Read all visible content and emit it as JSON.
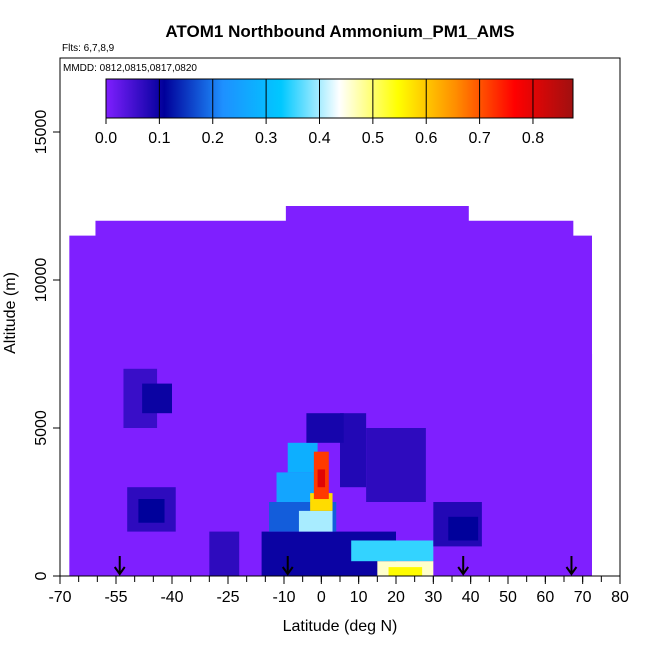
{
  "chart_data": {
    "type": "heatmap",
    "title": "ATOM1 Northbound Ammonium_PM1_AMS",
    "annotations": {
      "flights": "Flts: 6,7,8,9",
      "dates": "MMDD: 0812,0815,0817,0820"
    },
    "xlabel": "Latitude (deg N)",
    "ylabel": "Altitude (m)",
    "xlim": [
      -70,
      80
    ],
    "ylim": [
      0,
      17500
    ],
    "x_ticks": [
      -70,
      -55,
      -40,
      -25,
      -10,
      0,
      10,
      20,
      30,
      40,
      50,
      60,
      70,
      80
    ],
    "x_tick_labels": [
      "-70",
      "-55",
      "-40",
      "-25",
      "-10",
      "0",
      "10",
      "20",
      "30",
      "40",
      "50",
      "60",
      "70",
      "80"
    ],
    "y_ticks": [
      0,
      5000,
      10000,
      15000
    ],
    "y_tick_labels": [
      "0",
      "5000",
      "10000",
      "15000"
    ],
    "colorbar": {
      "ticks": [
        0.0,
        0.1,
        0.2,
        0.3,
        0.4,
        0.5,
        0.6,
        0.7,
        0.8
      ],
      "tick_labels": [
        "0.0",
        "0.1",
        "0.2",
        "0.3",
        "0.4",
        "0.5",
        "0.6",
        "0.7",
        "0.8"
      ],
      "range": [
        0,
        0.875
      ],
      "colors": [
        "#7f1fff",
        "#00009a",
        "#1e90ff",
        "#00c8ff",
        "#ffffff",
        "#ffff00",
        "#ff8c00",
        "#ff0000",
        "#a01010"
      ]
    },
    "background_value": 0.0,
    "field_envelope": [
      {
        "lat": -67.5,
        "top": 11500
      },
      {
        "lat": -60.5,
        "top": 12000
      },
      {
        "lat": -27.5,
        "top": 12000
      },
      {
        "lat": -9.5,
        "top": 12500
      },
      {
        "lat": 39.5,
        "top": 12000
      },
      {
        "lat": 67.5,
        "top": 11500
      },
      {
        "lat": 72.5,
        "top": 7500
      }
    ],
    "cells": [
      {
        "lat": [
          -53,
          -44
        ],
        "alt": [
          5000,
          7000
        ],
        "value": 0.06
      },
      {
        "lat": [
          -48,
          -40
        ],
        "alt": [
          5500,
          6500
        ],
        "value": 0.1
      },
      {
        "lat": [
          -52,
          -39
        ],
        "alt": [
          1500,
          3000
        ],
        "value": 0.07
      },
      {
        "lat": [
          -49,
          -42
        ],
        "alt": [
          1800,
          2600
        ],
        "value": 0.11
      },
      {
        "lat": [
          -30,
          -22
        ],
        "alt": [
          0,
          1500
        ],
        "value": 0.07
      },
      {
        "lat": [
          -16,
          20
        ],
        "alt": [
          0,
          1500
        ],
        "value": 0.1
      },
      {
        "lat": [
          -14,
          4
        ],
        "alt": [
          1500,
          2500
        ],
        "value": 0.18
      },
      {
        "lat": [
          -12,
          1
        ],
        "alt": [
          2500,
          3500
        ],
        "value": 0.26
      },
      {
        "lat": [
          -9,
          -1
        ],
        "alt": [
          3500,
          4500
        ],
        "value": 0.28
      },
      {
        "lat": [
          -6,
          3
        ],
        "alt": [
          1500,
          2200
        ],
        "value": 0.4
      },
      {
        "lat": [
          -3,
          3
        ],
        "alt": [
          2200,
          2800
        ],
        "value": 0.58
      },
      {
        "lat": [
          -2,
          2
        ],
        "alt": [
          2600,
          4200
        ],
        "value": 0.72
      },
      {
        "lat": [
          -1,
          1
        ],
        "alt": [
          3000,
          3600
        ],
        "value": 0.8
      },
      {
        "lat": [
          5,
          12
        ],
        "alt": [
          3000,
          5500
        ],
        "value": 0.08
      },
      {
        "lat": [
          -4,
          6
        ],
        "alt": [
          4500,
          5500
        ],
        "value": 0.09
      },
      {
        "lat": [
          8,
          30
        ],
        "alt": [
          500,
          1200
        ],
        "value": 0.35
      },
      {
        "lat": [
          15,
          30
        ],
        "alt": [
          0,
          500
        ],
        "value": 0.46
      },
      {
        "lat": [
          18,
          27
        ],
        "alt": [
          0,
          300
        ],
        "value": 0.55
      },
      {
        "lat": [
          12,
          28
        ],
        "alt": [
          2500,
          5000
        ],
        "value": 0.07
      },
      {
        "lat": [
          30,
          43
        ],
        "alt": [
          1000,
          2500
        ],
        "value": 0.08
      },
      {
        "lat": [
          34,
          42
        ],
        "alt": [
          1200,
          2000
        ],
        "value": 0.11
      }
    ],
    "flight_markers_lat": [
      -54,
      -9,
      38,
      67
    ]
  }
}
